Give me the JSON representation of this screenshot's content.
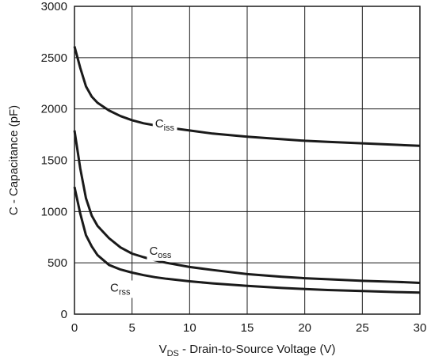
{
  "chart_data": {
    "type": "line",
    "title": "",
    "xlabel": {
      "main": "V",
      "sub": "DS",
      "rest": " - Drain-to-Source Voltage (V)"
    },
    "ylabel": "C - Capacitance (pF)",
    "xlim": [
      0,
      30
    ],
    "ylim": [
      0,
      3000
    ],
    "xticks": [
      0,
      5,
      10,
      15,
      20,
      25,
      30
    ],
    "yticks": [
      0,
      500,
      1000,
      1500,
      2000,
      2500,
      3000
    ],
    "grid": true,
    "legend": "inline labels",
    "series": [
      {
        "name": "Ciss",
        "label_main": "C",
        "label_sub": "iss",
        "x": [
          0,
          0.5,
          1,
          1.5,
          2,
          3,
          4,
          5,
          6,
          7,
          8,
          10,
          12,
          15,
          18,
          20,
          22,
          25,
          28,
          30
        ],
        "y": [
          2610,
          2400,
          2220,
          2120,
          2060,
          1985,
          1930,
          1890,
          1860,
          1840,
          1820,
          1790,
          1760,
          1730,
          1705,
          1690,
          1680,
          1665,
          1650,
          1640
        ]
      },
      {
        "name": "Coss",
        "label_main": "C",
        "label_sub": "oss",
        "x": [
          0,
          0.5,
          1,
          1.5,
          2,
          3,
          4,
          5,
          6,
          7,
          8,
          10,
          12,
          15,
          18,
          20,
          22,
          25,
          28,
          30
        ],
        "y": [
          1790,
          1420,
          1130,
          960,
          860,
          740,
          650,
          590,
          555,
          525,
          500,
          460,
          430,
          390,
          365,
          350,
          340,
          325,
          315,
          305
        ]
      },
      {
        "name": "Crss",
        "label_main": "C",
        "label_sub": "rss",
        "x": [
          0,
          0.5,
          1,
          1.5,
          2,
          3,
          4,
          5,
          6,
          7,
          8,
          10,
          12,
          15,
          18,
          20,
          22,
          25,
          28,
          30
        ],
        "y": [
          1240,
          980,
          770,
          660,
          575,
          480,
          435,
          405,
          380,
          360,
          345,
          320,
          300,
          275,
          255,
          245,
          235,
          225,
          215,
          210
        ]
      }
    ],
    "annotations": [
      {
        "series": "Ciss",
        "x": 7,
        "y": 1820
      },
      {
        "series": "Coss",
        "x": 6.5,
        "y": 580
      },
      {
        "series": "Crss",
        "x": 3.1,
        "y": 220
      }
    ]
  }
}
